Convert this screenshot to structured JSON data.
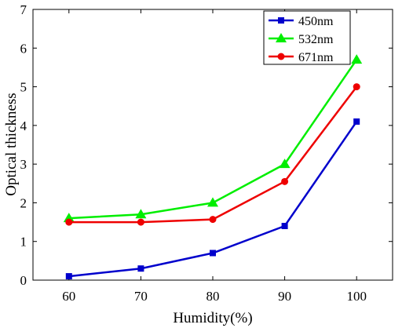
{
  "chart_data": {
    "type": "line",
    "title": "",
    "xlabel": "Humidity(%)",
    "ylabel": "Optical thickness",
    "x": [
      60,
      70,
      80,
      90,
      100
    ],
    "xlim": [
      55,
      105
    ],
    "ylim": [
      0,
      7
    ],
    "xticks": [
      "60",
      "70",
      "80",
      "90",
      "100"
    ],
    "yticks": [
      "0",
      "1",
      "2",
      "3",
      "4",
      "5",
      "6",
      "7"
    ],
    "grid": false,
    "legend_position": "top-right",
    "series": [
      {
        "name": "450nm",
        "color": "#0000cc",
        "marker": "square",
        "values": [
          0.1,
          0.3,
          0.7,
          1.4,
          4.1
        ]
      },
      {
        "name": "532nm",
        "color": "#00ee00",
        "marker": "triangle",
        "values": [
          1.6,
          1.7,
          2.0,
          3.0,
          5.7
        ]
      },
      {
        "name": "671nm",
        "color": "#ee0000",
        "marker": "circle",
        "values": [
          1.5,
          1.5,
          1.57,
          2.55,
          5.0
        ]
      }
    ]
  }
}
